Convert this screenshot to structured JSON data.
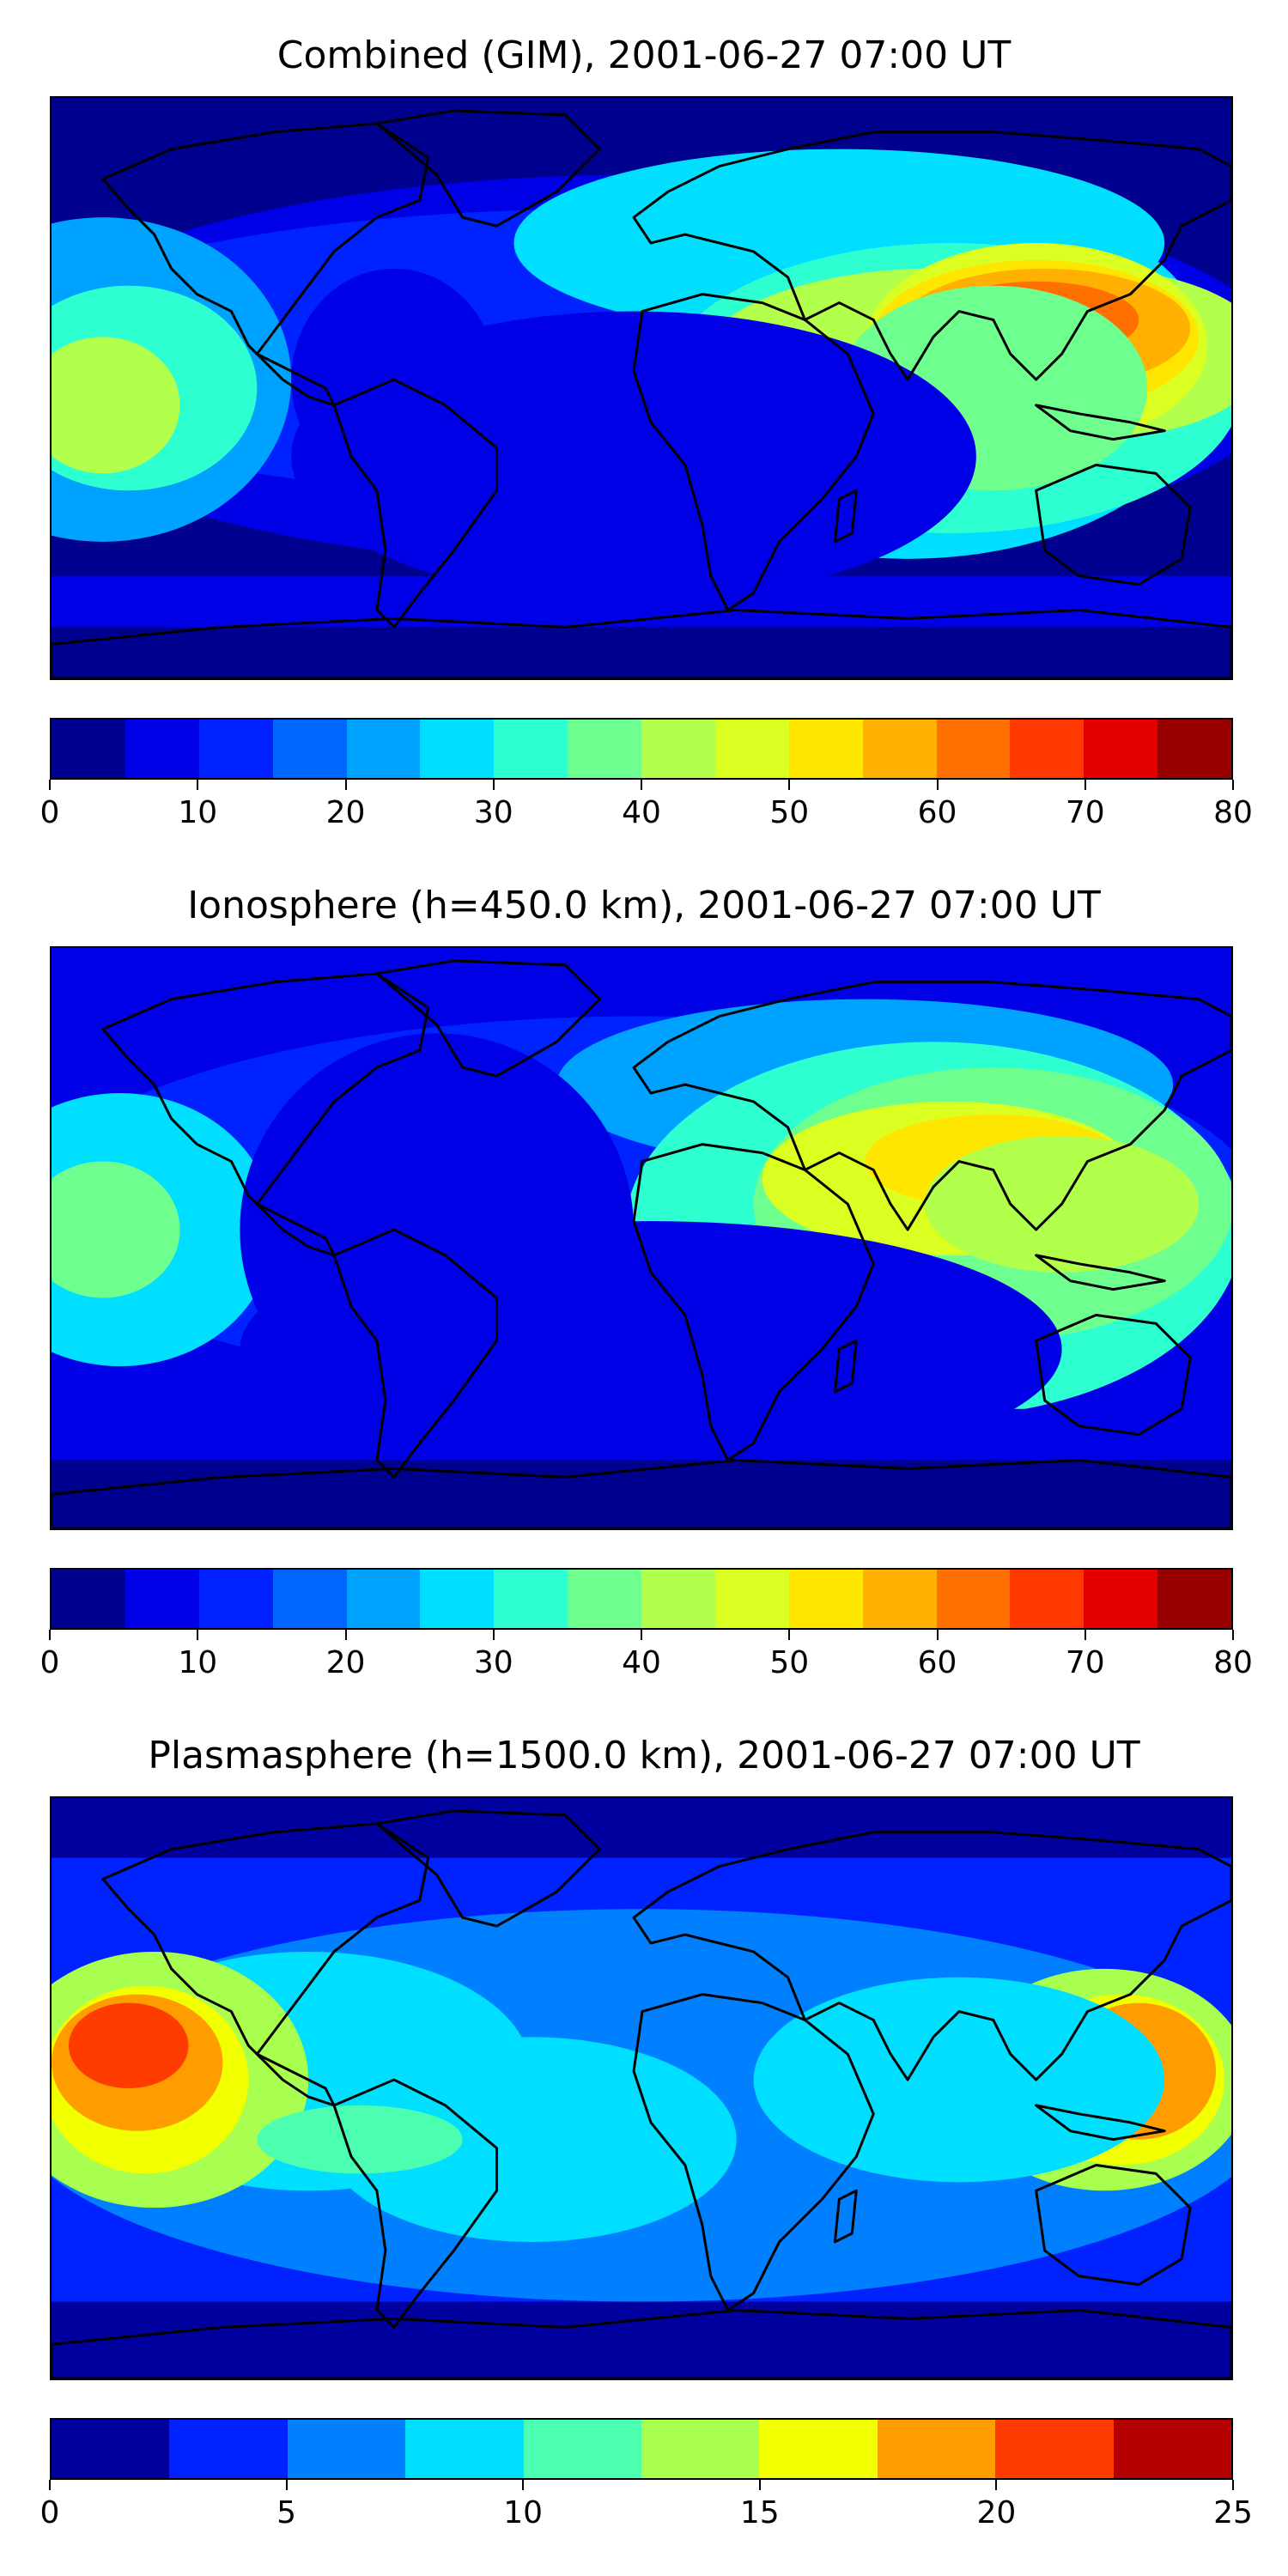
{
  "panels": [
    {
      "title": "Combined (GIM), 2001-06-27 07:00 UT",
      "colorbar": {
        "ticks": [
          "0",
          "10",
          "20",
          "30",
          "40",
          "50",
          "60",
          "70",
          "80"
        ],
        "min": 0,
        "max": 80,
        "colors": [
          "#00008f",
          "#0000e6",
          "#0022ff",
          "#0066ff",
          "#00a2ff",
          "#00dfff",
          "#2effd0",
          "#6fff8e",
          "#b2ff4c",
          "#dcff22",
          "#ffe600",
          "#ffb000",
          "#ff7000",
          "#ff3800",
          "#e50000",
          "#980000"
        ]
      },
      "field": "combined"
    },
    {
      "title": "Ionosphere  (h=450.0 km), 2001-06-27 07:00 UT",
      "colorbar": {
        "ticks": [
          "0",
          "10",
          "20",
          "30",
          "40",
          "50",
          "60",
          "70",
          "80"
        ],
        "min": 0,
        "max": 80,
        "colors": [
          "#00008f",
          "#0000e6",
          "#0022ff",
          "#0066ff",
          "#00a2ff",
          "#00dfff",
          "#2effd0",
          "#6fff8e",
          "#b2ff4c",
          "#dcff22",
          "#ffe600",
          "#ffb000",
          "#ff7000",
          "#ff3800",
          "#e50000",
          "#980000"
        ]
      },
      "field": "ionosphere"
    },
    {
      "title": "Plasmasphere (h=1500.0 km), 2001-06-27 07:00 UT",
      "colorbar": {
        "ticks": [
          "0",
          "5",
          "10",
          "15",
          "20",
          "25"
        ],
        "min": 0,
        "max": 25,
        "colors": [
          "#00009f",
          "#0022ff",
          "#0080ff",
          "#00dfff",
          "#4cffb0",
          "#a8ff50",
          "#f2ff00",
          "#ff9c00",
          "#ff3c00",
          "#b40000"
        ]
      },
      "field": "plasmasphere"
    }
  ]
}
